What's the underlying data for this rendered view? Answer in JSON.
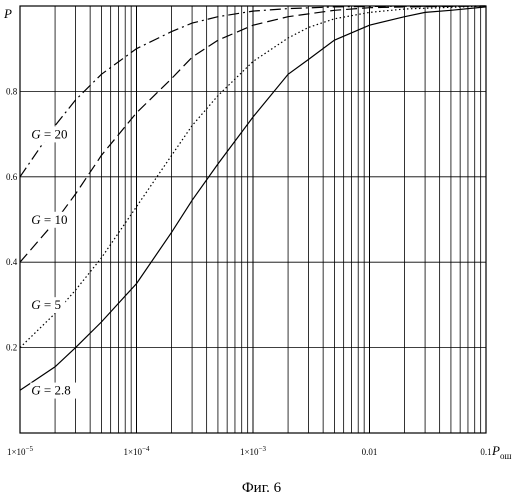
{
  "chart_data": {
    "type": "line",
    "xscale": "log",
    "xlim": [
      1e-05,
      0.1
    ],
    "ylim": [
      0,
      1
    ],
    "grid": true,
    "xlabel": "P",
    "xlabel_sub": "ош",
    "ylabel": "P",
    "x_ticks": [
      {
        "value": 1e-05,
        "mant": "1×10",
        "exp": "−5"
      },
      {
        "value": 0.0001,
        "mant": "1×10",
        "exp": "−4"
      },
      {
        "value": 0.001,
        "mant": "1×10",
        "exp": "−3"
      },
      {
        "value": 0.01,
        "label": "0.01"
      },
      {
        "value": 0.1,
        "label": "0.1"
      }
    ],
    "y_ticks": [
      {
        "value": 0.2,
        "label": "0.2"
      },
      {
        "value": 0.4,
        "label": "0.4"
      },
      {
        "value": 0.6,
        "label": "0.6"
      },
      {
        "value": 0.8,
        "label": "0.8"
      }
    ],
    "series": [
      {
        "name": "G = 2.8",
        "style": "solid",
        "x": [
          1e-05,
          2e-05,
          3e-05,
          5e-05,
          0.0001,
          0.0002,
          0.0003,
          0.0005,
          0.001,
          0.002,
          0.003,
          0.005,
          0.01,
          0.02,
          0.03,
          0.05,
          0.1
        ],
        "y": [
          0.1,
          0.155,
          0.2,
          0.26,
          0.35,
          0.47,
          0.545,
          0.63,
          0.74,
          0.84,
          0.875,
          0.92,
          0.955,
          0.975,
          0.985,
          0.99,
          0.998
        ]
      },
      {
        "name": "G = 5",
        "style": "dotted",
        "x": [
          1e-05,
          2e-05,
          3e-05,
          5e-05,
          0.0001,
          0.0002,
          0.0003,
          0.0005,
          0.001,
          0.002,
          0.003,
          0.005,
          0.01,
          0.02,
          0.05,
          0.1
        ],
        "y": [
          0.2,
          0.28,
          0.335,
          0.41,
          0.53,
          0.65,
          0.72,
          0.79,
          0.87,
          0.925,
          0.95,
          0.97,
          0.985,
          0.993,
          0.997,
          1.0
        ]
      },
      {
        "name": "G = 10",
        "style": "dashed",
        "x": [
          1e-05,
          2e-05,
          3e-05,
          5e-05,
          0.0001,
          0.0002,
          0.0003,
          0.0005,
          0.001,
          0.002,
          0.005,
          0.01,
          0.02,
          0.05,
          0.1
        ],
        "y": [
          0.4,
          0.495,
          0.56,
          0.65,
          0.75,
          0.83,
          0.88,
          0.92,
          0.955,
          0.975,
          0.99,
          0.996,
          0.998,
          0.999,
          1.0
        ]
      },
      {
        "name": "G = 20",
        "style": "dashdot",
        "x": [
          1e-05,
          2e-05,
          3e-05,
          5e-05,
          0.0001,
          0.0002,
          0.0003,
          0.0005,
          0.001,
          0.002,
          0.005,
          0.01,
          0.1
        ],
        "y": [
          0.6,
          0.72,
          0.78,
          0.84,
          0.9,
          0.94,
          0.96,
          0.975,
          0.988,
          0.994,
          0.998,
          0.999,
          1.0
        ]
      }
    ],
    "annotations": [
      {
        "text": "G = 20",
        "x": 1.25e-05,
        "y": 0.69
      },
      {
        "text": "G = 10",
        "x": 1.25e-05,
        "y": 0.49
      },
      {
        "text": "G = 5",
        "x": 1.25e-05,
        "y": 0.29
      },
      {
        "text": "G = 2.8",
        "x": 1.25e-05,
        "y": 0.09
      }
    ]
  },
  "caption": "Фиг. 6"
}
